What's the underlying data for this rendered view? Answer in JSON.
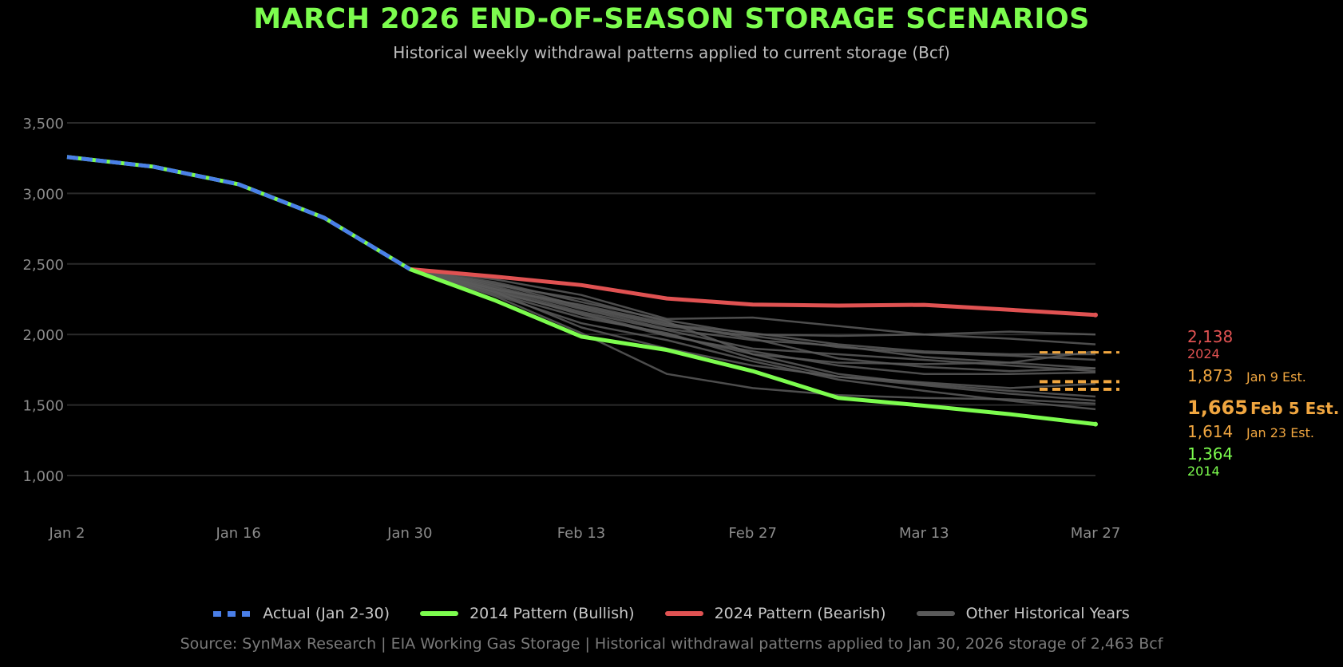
{
  "header": {
    "title": "MARCH 2026 END-OF-SEASON STORAGE SCENARIOS",
    "subtitle": "Historical weekly withdrawal patterns applied to current storage (Bcf)"
  },
  "legend": [
    {
      "label": "Actual (Jan 2-30)",
      "style": "dotted",
      "color": "#4a7fe8"
    },
    {
      "label": "2014 Pattern (Bullish)",
      "style": "solid",
      "color": "#7cfc4e"
    },
    {
      "label": "2024 Pattern (Bearish)",
      "style": "solid",
      "color": "#e05252"
    },
    {
      "label": "Other Historical Years",
      "style": "solid",
      "color": "#5a5a5a"
    }
  ],
  "source": "Source: SynMax Research | EIA Working Gas Storage | Historical withdrawal patterns applied to Jan 30, 2026 storage of 2,463 Bcf",
  "chart_data": {
    "type": "line",
    "title": "MARCH 2026 END-OF-SEASON STORAGE SCENARIOS",
    "subtitle": "Historical weekly withdrawal patterns applied to current storage (Bcf)",
    "xlabel": "",
    "ylabel": "",
    "ylim": [
      1000,
      3500
    ],
    "yticks": [
      1000,
      1500,
      2000,
      2500,
      3000,
      3500
    ],
    "ytick_labels": [
      "1,000",
      "1,500",
      "2,000",
      "2,500",
      "3,000",
      "3,500"
    ],
    "x": [
      "Jan 2",
      "Jan 9",
      "Jan 16",
      "Jan 23",
      "Jan 30",
      "Feb 6",
      "Feb 13",
      "Feb 20",
      "Feb 27",
      "Mar 6",
      "Mar 13",
      "Mar 20",
      "Mar 27"
    ],
    "xticks": [
      "Jan 2",
      "Jan 16",
      "Jan 30",
      "Feb 13",
      "Feb 27",
      "Mar 13",
      "Mar 27"
    ],
    "grid": true,
    "legend_position": "bottom",
    "series": [
      {
        "name": "Actual (Jan 2-30)",
        "kind": "actual",
        "color": "#4a7fe8",
        "accent": "#7cfc4e",
        "start_index": 0,
        "values": [
          3258,
          3190,
          3065,
          2827,
          2463
        ]
      },
      {
        "name": "2014 Pattern (Bullish)",
        "kind": "bullish",
        "color": "#7cfc4e",
        "start_index": 4,
        "values": [
          2463,
          2240,
          1985,
          1890,
          1740,
          1550,
          1495,
          1435,
          1364
        ]
      },
      {
        "name": "2024 Pattern (Bearish)",
        "kind": "bearish",
        "color": "#e05252",
        "start_index": 4,
        "values": [
          2463,
          2410,
          2350,
          2255,
          2212,
          2205,
          2210,
          2175,
          2138
        ]
      },
      {
        "name": "Other Historical Years",
        "kind": "other",
        "color": "#5a5a5a",
        "start_index": 4,
        "values": [
          2463,
          2390,
          2280,
          2110,
          2120,
          2060,
          2000,
          2020,
          2000
        ]
      },
      {
        "name": "Other Historical Years",
        "kind": "other",
        "color": "#5a5a5a",
        "start_index": 4,
        "values": [
          2463,
          2370,
          2230,
          2100,
          2000,
          1990,
          2000,
          1970,
          1930
        ]
      },
      {
        "name": "Other Historical Years",
        "kind": "other",
        "color": "#5a5a5a",
        "start_index": 4,
        "values": [
          2463,
          2360,
          2200,
          2070,
          2010,
          1930,
          1880,
          1860,
          1860
        ]
      },
      {
        "name": "Other Historical Years",
        "kind": "other",
        "color": "#5a5a5a",
        "start_index": 4,
        "values": [
          2463,
          2340,
          2190,
          2060,
          1990,
          1910,
          1870,
          1850,
          1820
        ]
      },
      {
        "name": "Other Historical Years",
        "kind": "other",
        "color": "#5a5a5a",
        "start_index": 4,
        "values": [
          2463,
          2330,
          2180,
          2040,
          1960,
          1920,
          1840,
          1800,
          1760
        ]
      },
      {
        "name": "Other Historical Years",
        "kind": "other",
        "color": "#5a5a5a",
        "start_index": 4,
        "values": [
          2463,
          2320,
          2160,
          2030,
          1900,
          1860,
          1820,
          1780,
          1740
        ]
      },
      {
        "name": "Other Historical Years",
        "kind": "other",
        "color": "#5a5a5a",
        "start_index": 4,
        "values": [
          2463,
          2310,
          2140,
          1990,
          1880,
          1780,
          1720,
          1720,
          1730
        ]
      },
      {
        "name": "Other Historical Years",
        "kind": "other",
        "color": "#5a5a5a",
        "start_index": 4,
        "values": [
          2463,
          2300,
          2150,
          2000,
          1860,
          1720,
          1650,
          1600,
          1560
        ]
      },
      {
        "name": "Other Historical Years",
        "kind": "other",
        "color": "#5a5a5a",
        "start_index": 4,
        "values": [
          2463,
          2290,
          2120,
          2010,
          1830,
          1700,
          1640,
          1580,
          1530
        ]
      },
      {
        "name": "Other Historical Years",
        "kind": "other",
        "color": "#5a5a5a",
        "start_index": 4,
        "values": [
          2463,
          2280,
          2080,
          1960,
          1810,
          1680,
          1600,
          1530,
          1470
        ]
      },
      {
        "name": "Other Historical Years",
        "kind": "other",
        "color": "#5a5a5a",
        "start_index": 4,
        "values": [
          2463,
          2270,
          2010,
          1720,
          1620,
          1570,
          1550,
          1540,
          1510
        ]
      },
      {
        "name": "Other Historical Years",
        "kind": "other",
        "color": "#5a5a5a",
        "start_index": 4,
        "values": [
          2463,
          2320,
          2210,
          2080,
          1970,
          1830,
          1770,
          1740,
          1760
        ]
      },
      {
        "name": "Other Historical Years",
        "kind": "other",
        "color": "#5a5a5a",
        "start_index": 4,
        "values": [
          2463,
          2350,
          2250,
          2090,
          1860,
          1800,
          1790,
          1800,
          1880
        ]
      },
      {
        "name": "Other Historical Years",
        "kind": "other",
        "color": "#5a5a5a",
        "start_index": 4,
        "values": [
          2463,
          2300,
          2050,
          1900,
          1780,
          1700,
          1660,
          1620,
          1650
        ]
      }
    ],
    "estimates": [
      {
        "label": "Jan 9 Est.",
        "value": 1873,
        "value_label": "1,873",
        "emphasis": false
      },
      {
        "label": "Feb 5 Est.",
        "value": 1665,
        "value_label": "1,665",
        "emphasis": true
      },
      {
        "label": "Jan 23 Est.",
        "value": 1614,
        "value_label": "1,614",
        "emphasis": false
      }
    ],
    "end_labels": [
      {
        "value": 2138,
        "value_label": "2,138",
        "sub_label": "2024",
        "color": "#e05252"
      },
      {
        "value": 1364,
        "value_label": "1,364",
        "sub_label": "2014",
        "color": "#7cfc4e"
      }
    ],
    "estimate_color": "#f0a640"
  }
}
